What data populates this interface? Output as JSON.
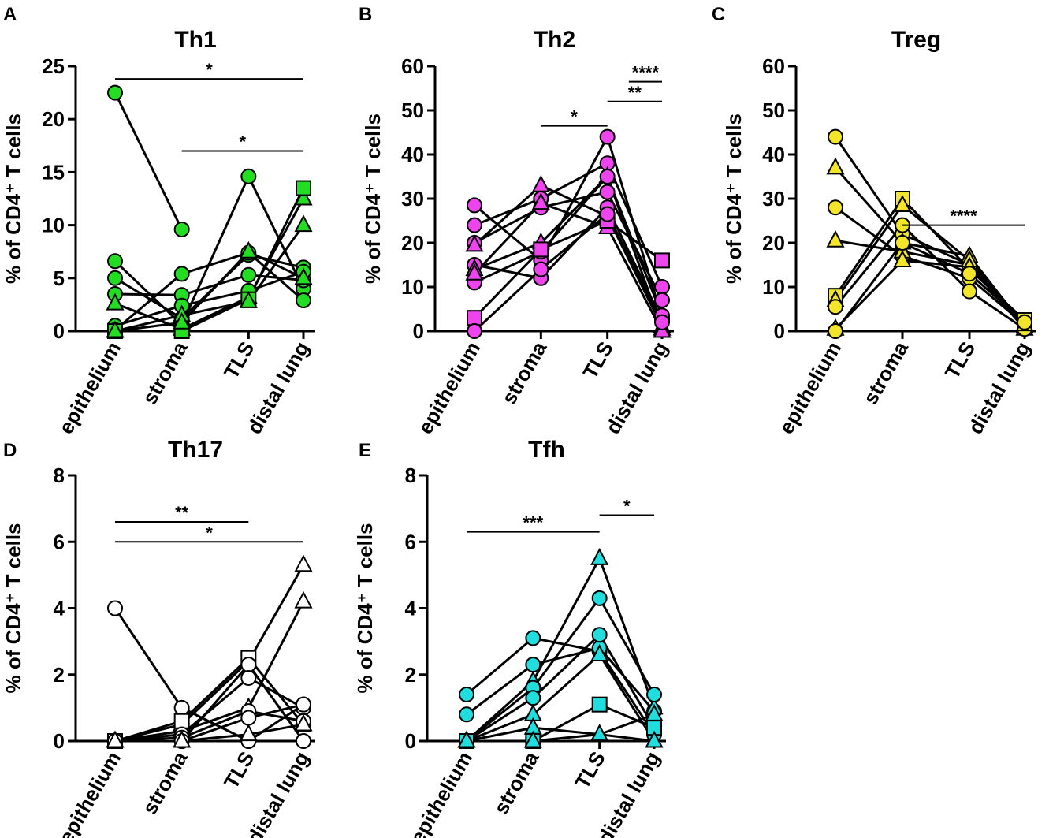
{
  "figure": {
    "description_free": true,
    "marker_stroke": "#000000",
    "line_color": "#000000"
  },
  "chart_data": [
    {
      "id": "A",
      "panel_letter": "A",
      "type": "line",
      "title": "Th1",
      "ylabel": "% of CD4⁺ T cells",
      "ylim": [
        0,
        25
      ],
      "yticks": [
        0,
        5,
        10,
        15,
        20,
        25
      ],
      "categories": [
        "epithelium",
        "stroma",
        "TLS",
        "distal lung"
      ],
      "color": "#22dd22",
      "series": [
        {
          "marker": "circle",
          "values": [
            22.5,
            9.6,
            null,
            null
          ]
        },
        {
          "marker": "circle",
          "values": [
            6.6,
            0.6,
            14.6,
            4.0
          ]
        },
        {
          "marker": "circle",
          "values": [
            5.0,
            1.2,
            7.2,
            6.0
          ]
        },
        {
          "marker": "circle",
          "values": [
            3.5,
            3.4,
            5.3,
            4.8
          ]
        },
        {
          "marker": "triangle",
          "values": [
            2.6,
            0.2,
            3.2,
            12.5
          ]
        },
        {
          "marker": "circle",
          "values": [
            0.5,
            2.4,
            3.8,
            5.6
          ]
        },
        {
          "marker": "circle",
          "values": [
            0.1,
            5.4,
            7.4,
            2.9
          ]
        },
        {
          "marker": "square",
          "values": [
            0.0,
            0.0,
            3.0,
            13.5
          ]
        },
        {
          "marker": "triangle",
          "values": [
            0.0,
            1.5,
            2.8,
            10.0
          ]
        },
        {
          "marker": "triangle",
          "values": [
            0.0,
            0.8,
            7.5,
            5.0
          ]
        }
      ],
      "significance": [
        {
          "from": "epithelium",
          "to": "distal lung",
          "y": 23.8,
          "label": "*"
        },
        {
          "from": "stroma",
          "to": "distal lung",
          "y": 17.0,
          "label": "*"
        }
      ]
    },
    {
      "id": "B",
      "panel_letter": "B",
      "type": "line",
      "title": "Th2",
      "ylabel": "% of CD4⁺ T cells",
      "ylim": [
        0,
        60
      ],
      "yticks": [
        0,
        10,
        20,
        30,
        40,
        50,
        60
      ],
      "categories": [
        "epithelium",
        "stroma",
        "TLS",
        "distal lung"
      ],
      "color": "#ee44ee",
      "series": [
        {
          "marker": "circle",
          "values": [
            28.5,
            16.0,
            44.0,
            3.0
          ]
        },
        {
          "marker": "circle",
          "values": [
            24.0,
            30.0,
            38.0,
            10.0
          ]
        },
        {
          "marker": "circle",
          "values": [
            20.0,
            28.0,
            31.5,
            7.0
          ]
        },
        {
          "marker": "triangle",
          "values": [
            19.5,
            33.0,
            26.0,
            1.0
          ]
        },
        {
          "marker": "circle",
          "values": [
            15.0,
            12.0,
            28.0,
            2.5
          ]
        },
        {
          "marker": "triangle",
          "values": [
            14.0,
            20.0,
            35.0,
            0.5
          ]
        },
        {
          "marker": "circle",
          "values": [
            11.0,
            18.0,
            35.0,
            3.5
          ]
        },
        {
          "marker": "triangle",
          "values": [
            13.0,
            29.0,
            23.5,
            0.0
          ]
        },
        {
          "marker": "square",
          "values": [
            3.0,
            18.5,
            25.0,
            16.0
          ]
        },
        {
          "marker": "circle",
          "values": [
            0.0,
            14.0,
            26.5,
            2.0
          ]
        }
      ],
      "significance": [
        {
          "from": "stroma",
          "to": "TLS",
          "y": 46.5,
          "label": "*"
        },
        {
          "from": "TLS",
          "to": "distal lung",
          "y": 52.0,
          "label": "**"
        },
        {
          "from": "distal lung",
          "to": "distal lung",
          "y": 56.5,
          "label": "****",
          "start_offset": -0.5
        }
      ]
    },
    {
      "id": "C",
      "panel_letter": "C",
      "type": "line",
      "title": "Treg",
      "ylabel": "% of CD4⁺ T cells",
      "ylim": [
        0,
        60
      ],
      "yticks": [
        0,
        10,
        20,
        30,
        40,
        50,
        60
      ],
      "categories": [
        "epithelium",
        "stroma",
        "TLS",
        "distal lung"
      ],
      "color": "#f2e52a",
      "series": [
        {
          "marker": "circle",
          "values": [
            44.0,
            22.0,
            15.0,
            2.0
          ]
        },
        {
          "marker": "triangle",
          "values": [
            37.0,
            20.0,
            17.0,
            1.0
          ]
        },
        {
          "marker": "circle",
          "values": [
            28.0,
            17.0,
            12.0,
            1.5
          ]
        },
        {
          "marker": "triangle",
          "values": [
            20.5,
            18.0,
            15.0,
            0.5
          ]
        },
        {
          "marker": "square",
          "values": [
            8.0,
            30.0,
            14.0,
            2.5
          ]
        },
        {
          "marker": "triangle",
          "values": [
            7.0,
            28.5,
            16.0,
            1.0
          ]
        },
        {
          "marker": "circle",
          "values": [
            5.5,
            24.0,
            9.0,
            0.5
          ]
        },
        {
          "marker": "triangle",
          "values": [
            0.5,
            16.0,
            14.5,
            1.5
          ]
        },
        {
          "marker": "circle",
          "values": [
            0.0,
            20.0,
            13.0,
            2.0
          ]
        }
      ],
      "significance": [
        {
          "from": "stroma",
          "to": "distal lung",
          "y": 24.0,
          "label": "****"
        }
      ]
    },
    {
      "id": "D",
      "panel_letter": "D",
      "type": "line",
      "title": "Th17",
      "ylabel": "% of CD4⁺ T cells",
      "ylim": [
        0,
        8
      ],
      "yticks": [
        0,
        2,
        4,
        6,
        8
      ],
      "categories": [
        "epithelium",
        "stroma",
        "TLS",
        "distal lung"
      ],
      "color": "#ffffff",
      "series": [
        {
          "marker": "circle",
          "values": [
            4.0,
            1.0,
            0.0,
            1.1
          ]
        },
        {
          "marker": "triangle",
          "values": [
            0.0,
            0.5,
            2.4,
            5.3
          ]
        },
        {
          "marker": "triangle",
          "values": [
            0.0,
            0.3,
            1.0,
            4.2
          ]
        },
        {
          "marker": "square",
          "values": [
            0.0,
            0.6,
            2.5,
            0.5
          ]
        },
        {
          "marker": "circle",
          "values": [
            0.0,
            0.0,
            2.3,
            0.0
          ]
        },
        {
          "marker": "circle",
          "values": [
            0.0,
            0.2,
            1.9,
            1.0
          ]
        },
        {
          "marker": "circle",
          "values": [
            0.0,
            0.1,
            0.9,
            0.6
          ]
        },
        {
          "marker": "circle",
          "values": [
            0.0,
            0.0,
            0.7,
            1.1
          ]
        },
        {
          "marker": "triangle",
          "values": [
            0.0,
            0.0,
            0.2,
            0.5
          ]
        }
      ],
      "significance": [
        {
          "from": "epithelium",
          "to": "TLS",
          "y": 6.6,
          "label": "**"
        },
        {
          "from": "epithelium",
          "to": "distal lung",
          "y": 6.0,
          "label": "*"
        }
      ]
    },
    {
      "id": "E",
      "panel_letter": "E",
      "type": "line",
      "title": "Tfh",
      "ylabel": "% of CD4⁺ T cells",
      "ylim": [
        0,
        8
      ],
      "yticks": [
        0,
        2,
        4,
        6,
        8
      ],
      "categories": [
        "epithelium",
        "stroma",
        "TLS",
        "distal lung"
      ],
      "color": "#22dddd",
      "series": [
        {
          "marker": "circle",
          "values": [
            1.4,
            3.1,
            2.7,
            0.2
          ]
        },
        {
          "marker": "circle",
          "values": [
            0.8,
            2.3,
            2.8,
            0.9
          ]
        },
        {
          "marker": "triangle",
          "values": [
            0.0,
            1.8,
            5.5,
            1.0
          ]
        },
        {
          "marker": "circle",
          "values": [
            0.0,
            1.6,
            4.3,
            1.4
          ]
        },
        {
          "marker": "circle",
          "values": [
            0.0,
            1.3,
            3.2,
            0.4
          ]
        },
        {
          "marker": "triangle",
          "values": [
            0.0,
            0.8,
            2.6,
            0.0
          ]
        },
        {
          "marker": "square",
          "values": [
            0.0,
            0.0,
            1.1,
            0.4
          ]
        },
        {
          "marker": "triangle",
          "values": [
            0.0,
            0.4,
            0.2,
            0.8
          ]
        },
        {
          "marker": "triangle",
          "values": [
            0.0,
            0.0,
            0.2,
            0.0
          ]
        }
      ],
      "significance": [
        {
          "from": "epithelium",
          "to": "TLS",
          "y": 6.3,
          "label": "***"
        },
        {
          "from": "TLS",
          "to": "distal lung",
          "y": 6.8,
          "label": "*"
        }
      ]
    }
  ]
}
